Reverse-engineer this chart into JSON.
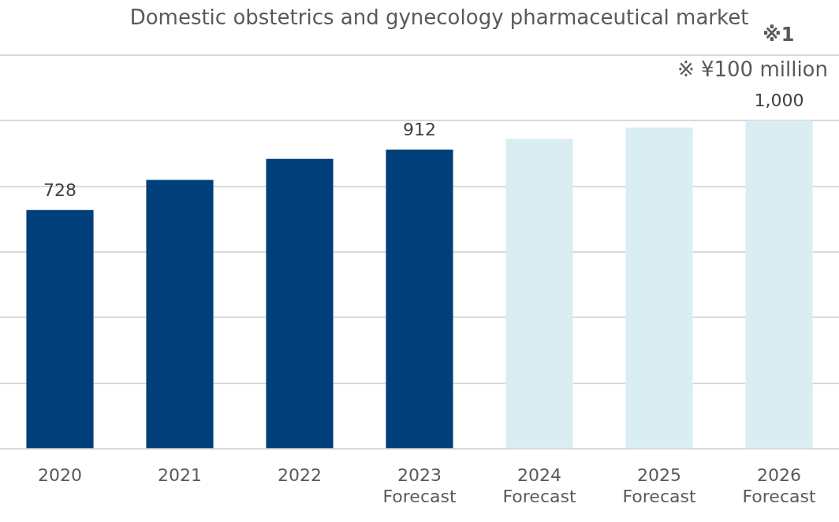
{
  "chart_data": {
    "type": "bar",
    "title": "Domestic obstetrics and gynecology pharmaceutical market",
    "annotations": [
      "※1",
      "※ ¥100 million"
    ],
    "categories": [
      "2020",
      "2021",
      "2022",
      "2023\nForecast",
      "2024\nForecast",
      "2025\nForecast",
      "2026\nForecast"
    ],
    "values": [
      728,
      820,
      884,
      912,
      945,
      979,
      1000
    ],
    "value_labels": [
      "728",
      null,
      null,
      "912",
      null,
      null,
      "1,000"
    ],
    "colors": [
      "#003f7a",
      "#003f7a",
      "#003f7a",
      "#003f7a",
      "#daedf3",
      "#daedf3",
      "#daedf3"
    ],
    "ylim": [
      0,
      1200
    ],
    "yticks": [
      {
        "value": 0,
        "label": null
      },
      {
        "value": 200,
        "label": null
      },
      {
        "value": 400,
        "label": null
      },
      {
        "value": 600,
        "label": null
      },
      {
        "value": 800,
        "label": null
      },
      {
        "value": 1000,
        "label": null
      },
      {
        "value": 1200,
        "label": null
      }
    ],
    "grid": "y",
    "tick_labels": "x"
  }
}
